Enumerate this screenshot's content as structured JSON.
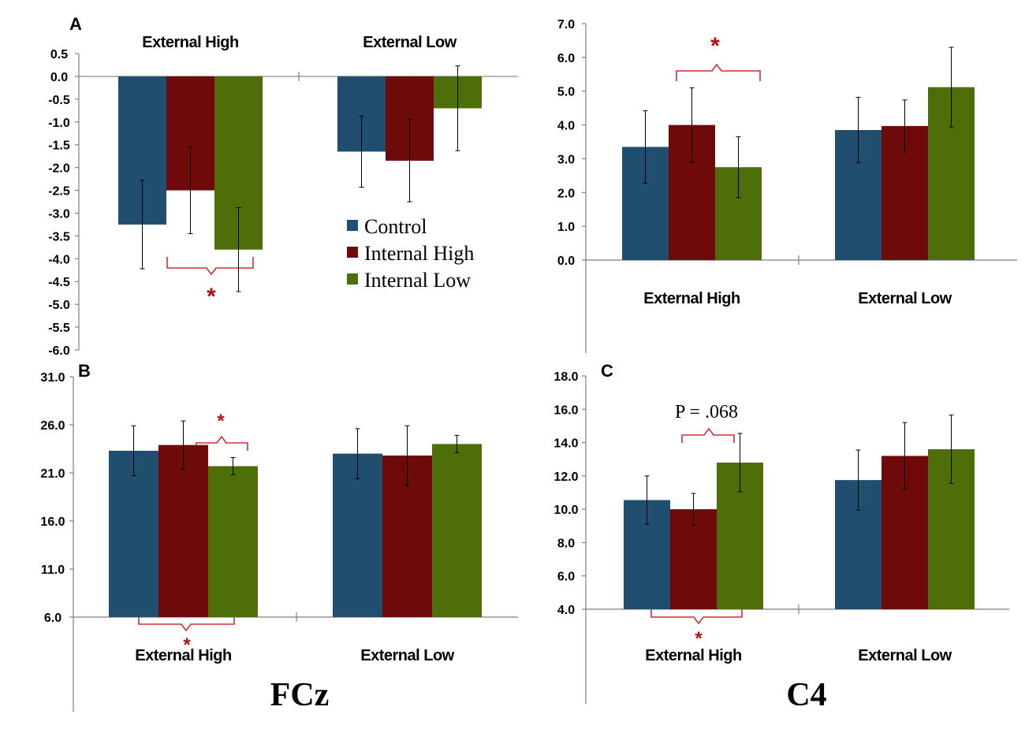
{
  "colors": {
    "Control": "#1f4e6e",
    "Internal High": "#6e0a0a",
    "Internal Low": "#4e6e0a",
    "significance": "#b01010"
  },
  "legend": {
    "items": [
      {
        "name": "Control",
        "color": "#1f4e6e"
      },
      {
        "name": "Internal High",
        "color": "#6e0a0a"
      },
      {
        "name": "Internal Low",
        "color": "#4e6e0a"
      }
    ]
  },
  "footer": {
    "left_label": "FCz",
    "right_label": "C4"
  },
  "chart_data": [
    {
      "id": "panelA_fcz",
      "panel_label": "A",
      "type": "bar",
      "categories": [
        "External High",
        "External Low"
      ],
      "series": [
        {
          "name": "Control",
          "values": [
            -3.25,
            -1.65
          ],
          "errors": [
            0.97,
            0.78
          ]
        },
        {
          "name": "Internal High",
          "values": [
            -2.5,
            -1.85
          ],
          "errors": [
            0.95,
            0.9
          ]
        },
        {
          "name": "Internal Low",
          "values": [
            -3.8,
            -0.7
          ],
          "errors": [
            0.92,
            0.93
          ]
        }
      ],
      "ylim": [
        -6.0,
        0.5
      ],
      "yticks": [
        "0.5",
        "0.0",
        "-0.5",
        "-1.0",
        "-1.5",
        "-2.0",
        "-2.5",
        "-3.0",
        "-3.5",
        "-4.0",
        "-4.5",
        "-5.0",
        "-5.5",
        "-6.0"
      ],
      "ytick_values": [
        0.5,
        0.0,
        -0.5,
        -1.0,
        -1.5,
        -2.0,
        -2.5,
        -3.0,
        -3.5,
        -4.0,
        -4.5,
        -5.0,
        -5.5,
        -6.0
      ],
      "category_labels_position": "top",
      "annotations": [
        {
          "text": "*",
          "between": [
            "Control",
            "Internal Low"
          ],
          "category": "External High"
        }
      ]
    },
    {
      "id": "panelA_c4",
      "panel_label": "",
      "type": "bar",
      "categories": [
        "External High",
        "External Low"
      ],
      "series": [
        {
          "name": "Control",
          "values": [
            3.35,
            3.85
          ],
          "errors": [
            1.07,
            0.97
          ]
        },
        {
          "name": "Internal High",
          "values": [
            4.0,
            3.97
          ],
          "errors": [
            1.1,
            0.77
          ]
        },
        {
          "name": "Internal Low",
          "values": [
            2.75,
            5.12
          ],
          "errors": [
            0.9,
            1.18
          ]
        }
      ],
      "ylim": [
        0.0,
        7.0
      ],
      "yticks": [
        "7.0",
        "6.0",
        "5.0",
        "4.0",
        "3.0",
        "2.0",
        "1.0",
        "0.0"
      ],
      "ytick_values": [
        7.0,
        6.0,
        5.0,
        4.0,
        3.0,
        2.0,
        1.0,
        0.0
      ],
      "category_labels_position": "bottom",
      "annotations": [
        {
          "text": "*",
          "between": [
            "Internal High",
            "Internal Low"
          ],
          "category": "External High"
        }
      ]
    },
    {
      "id": "panelB_fcz",
      "panel_label": "B",
      "type": "bar",
      "categories": [
        "External High",
        "External Low"
      ],
      "series": [
        {
          "name": "Control",
          "values": [
            23.3,
            23.0
          ],
          "errors": [
            2.6,
            2.6
          ]
        },
        {
          "name": "Internal High",
          "values": [
            23.9,
            22.8
          ],
          "errors": [
            2.5,
            3.1
          ]
        },
        {
          "name": "Internal Low",
          "values": [
            21.7,
            24.0
          ],
          "errors": [
            0.9,
            0.9
          ]
        }
      ],
      "ylim": [
        6.0,
        31.0
      ],
      "yticks": [
        "31.0",
        "26.0",
        "21.0",
        "16.0",
        "11.0",
        "6.0"
      ],
      "ytick_values": [
        31.0,
        26.0,
        21.0,
        16.0,
        11.0,
        6.0
      ],
      "category_labels_position": "bottom",
      "annotations": [
        {
          "text": "*",
          "between": [
            "Internal High",
            "Internal Low"
          ],
          "category": "External High"
        },
        {
          "text": "*",
          "between": [
            "Control",
            "Internal Low"
          ],
          "category": "External High"
        }
      ]
    },
    {
      "id": "panelC_c4",
      "panel_label": "C",
      "type": "bar",
      "categories": [
        "External High",
        "External Low"
      ],
      "series": [
        {
          "name": "Control",
          "values": [
            10.55,
            11.75
          ],
          "errors": [
            1.45,
            1.8
          ]
        },
        {
          "name": "Internal High",
          "values": [
            10.0,
            13.2
          ],
          "errors": [
            0.95,
            2.0
          ]
        },
        {
          "name": "Internal Low",
          "values": [
            12.8,
            13.6
          ],
          "errors": [
            1.75,
            2.05
          ]
        }
      ],
      "ylim": [
        4.0,
        18.0
      ],
      "yticks": [
        "18.0",
        "16.0",
        "14.0",
        "12.0",
        "10.0",
        "8.0",
        "6.0",
        "4.0"
      ],
      "ytick_values": [
        18.0,
        16.0,
        14.0,
        12.0,
        10.0,
        8.0,
        6.0,
        4.0
      ],
      "category_labels_position": "bottom",
      "annotations": [
        {
          "text": "P = .068",
          "between": [
            "Internal High",
            "Internal Low"
          ],
          "category": "External High"
        },
        {
          "text": "*",
          "between": [
            "Control",
            "Internal Low"
          ],
          "category": "External High"
        }
      ]
    }
  ]
}
